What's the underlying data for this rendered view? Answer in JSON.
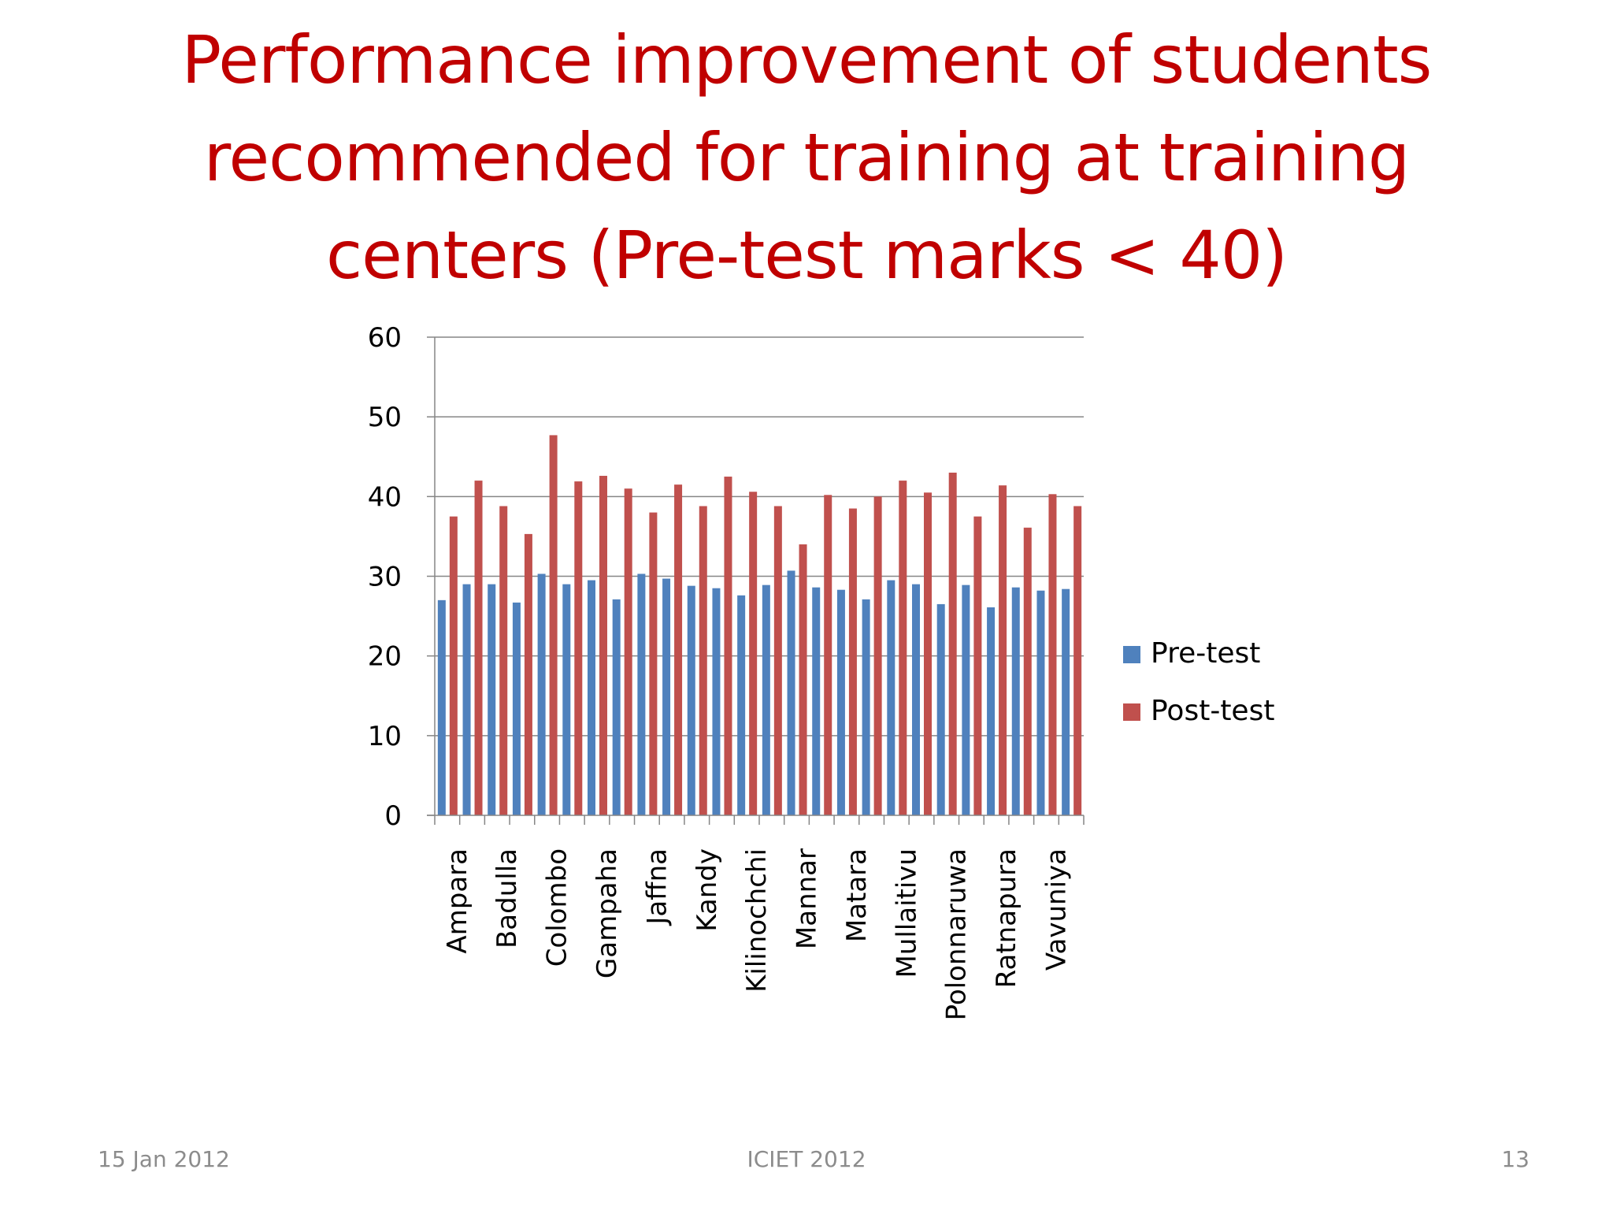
{
  "slide": {
    "title_lines": [
      "Performance improvement of students",
      "recommended for training at training",
      "centers (Pre-test marks < 40)"
    ],
    "footer": {
      "date": "15 Jan 2012",
      "conference": "ICIET 2012",
      "page": "13"
    }
  },
  "chart_data": {
    "type": "bar",
    "title": "",
    "xlabel": "",
    "ylabel": "",
    "ylim": [
      0,
      60
    ],
    "yticks": [
      0,
      10,
      20,
      30,
      40,
      50,
      60
    ],
    "grid": true,
    "legend_position": "right",
    "categories": [
      "Ampara",
      "",
      "Badulla",
      "",
      "Colombo",
      "",
      "Gampaha",
      "",
      "Jaffna",
      "",
      "Kandy",
      "",
      "Kilinochchi",
      "",
      "Mannar",
      "",
      "Matara",
      "",
      "Mullaitivu",
      "",
      "Polonnaruwa",
      "",
      "Ratnapura",
      "",
      "Vavuniya",
      ""
    ],
    "series": [
      {
        "name": "Pre-test",
        "color": "#4F81BD",
        "values": [
          27.0,
          29.0,
          29.0,
          26.7,
          30.3,
          29.0,
          29.5,
          27.1,
          30.3,
          29.7,
          28.8,
          28.5,
          27.6,
          28.9,
          30.7,
          28.6,
          28.3,
          27.1,
          29.5,
          29.0,
          26.5,
          28.9,
          26.1,
          28.6,
          28.2,
          28.4
        ]
      },
      {
        "name": "Post-test",
        "color": "#C0504D",
        "values": [
          37.5,
          42.0,
          38.8,
          35.3,
          47.7,
          41.9,
          42.6,
          41.0,
          38.0,
          41.5,
          38.8,
          42.5,
          40.6,
          38.8,
          34.0,
          40.2,
          38.5,
          40.0,
          42.0,
          40.5,
          43.0,
          37.5,
          41.4,
          36.1,
          40.3,
          38.8
        ]
      }
    ]
  }
}
